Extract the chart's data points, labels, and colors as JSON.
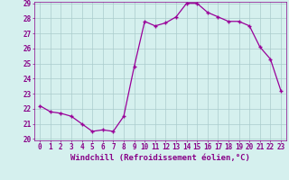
{
  "hours": [
    0,
    1,
    2,
    3,
    4,
    5,
    6,
    7,
    8,
    9,
    10,
    11,
    12,
    13,
    14,
    15,
    16,
    17,
    18,
    19,
    20,
    21,
    22,
    23
  ],
  "values": [
    22.2,
    21.8,
    21.7,
    21.5,
    21.0,
    20.5,
    20.6,
    20.5,
    21.5,
    24.8,
    27.8,
    27.5,
    27.7,
    28.1,
    29.0,
    29.0,
    28.4,
    28.1,
    27.8,
    27.8,
    27.5,
    26.1,
    25.3,
    23.2
  ],
  "line_color": "#990099",
  "marker": "+",
  "marker_size": 3.5,
  "marker_lw": 1.0,
  "line_width": 0.9,
  "bg_color": "#d5f0ee",
  "grid_color": "#aacccc",
  "xlabel": "Windchill (Refroidissement éolien,°C)",
  "ylim": [
    20,
    29
  ],
  "xlim": [
    -0.5,
    23.5
  ],
  "yticks": [
    20,
    21,
    22,
    23,
    24,
    25,
    26,
    27,
    28,
    29
  ],
  "xticks": [
    0,
    1,
    2,
    3,
    4,
    5,
    6,
    7,
    8,
    9,
    10,
    11,
    12,
    13,
    14,
    15,
    16,
    17,
    18,
    19,
    20,
    21,
    22,
    23
  ],
  "xtick_labels": [
    "0",
    "1",
    "2",
    "3",
    "4",
    "5",
    "6",
    "7",
    "8",
    "9",
    "10",
    "11",
    "12",
    "13",
    "14",
    "15",
    "16",
    "17",
    "18",
    "19",
    "20",
    "21",
    "22",
    "23"
  ],
  "tick_label_color": "#880088",
  "xlabel_color": "#880088",
  "axis_color": "#880088",
  "label_fontsize": 6.5,
  "tick_fontsize": 5.5
}
